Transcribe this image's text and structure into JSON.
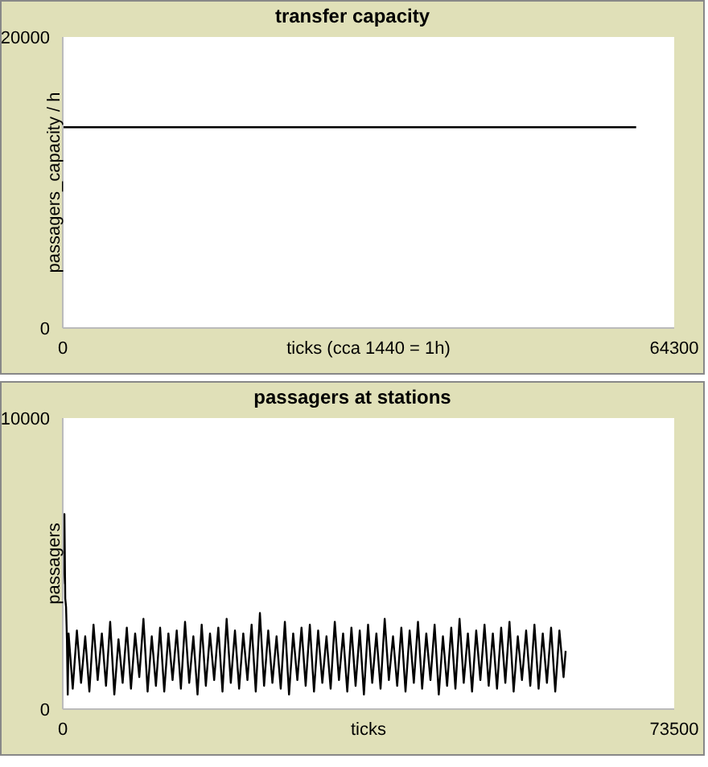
{
  "chart_data": [
    {
      "type": "line",
      "title": "transfer capacity",
      "xlabel": "ticks (cca 1440 = 1h)",
      "ylabel": "passagers_capacity / h",
      "xlim": [
        0,
        64300
      ],
      "xticks": [
        0,
        64300
      ],
      "ylim": [
        0,
        20000
      ],
      "yticks": [
        0,
        20000
      ],
      "grid": false,
      "legend": false,
      "marker": "none",
      "series": [
        {
          "color": "#000000",
          "x": [
            0,
            60300
          ],
          "values": [
            13800,
            13800
          ]
        }
      ]
    },
    {
      "type": "line",
      "title": "passagers at stations",
      "xlabel": "ticks",
      "ylabel": "passagers",
      "xlim": [
        0,
        73500
      ],
      "xticks": [
        0,
        73500
      ],
      "ylim": [
        0,
        10000
      ],
      "yticks": [
        0,
        10000
      ],
      "grid": false,
      "legend": false,
      "marker": "none",
      "series": [
        {
          "color": "#000000",
          "x": [
            0,
            100,
            200,
            300,
            400,
            500,
            600,
            700,
            1200,
            1700,
            2200,
            2700,
            3200,
            3700,
            4200,
            4700,
            5200,
            5700,
            6200,
            6700,
            7200,
            7700,
            8200,
            8700,
            9200,
            9700,
            10200,
            10700,
            11200,
            11700,
            12200,
            12700,
            13200,
            13700,
            14200,
            14700,
            15200,
            15700,
            16200,
            16700,
            17200,
            17700,
            18200,
            18700,
            19200,
            19700,
            20200,
            20700,
            21200,
            21700,
            22200,
            22700,
            23200,
            23700,
            24200,
            24700,
            25200,
            25700,
            26200,
            26700,
            27200,
            27700,
            28200,
            28700,
            29200,
            29700,
            30200,
            30700,
            31200,
            31700,
            32200,
            32700,
            33200,
            33700,
            34200,
            34700,
            35200,
            35700,
            36200,
            36700,
            37200,
            37700,
            38200,
            38700,
            39200,
            39700,
            40200,
            40700,
            41200,
            41700,
            42200,
            42700,
            43200,
            43700,
            44200,
            44700,
            45200,
            45700,
            46200,
            46700,
            47200,
            47700,
            48200,
            48700,
            49200,
            49700,
            50200,
            50700,
            51200,
            51700,
            52200,
            52700,
            53200,
            53700,
            54200,
            54700,
            55200,
            55700,
            56200,
            56700,
            57200,
            57700,
            58200,
            58700,
            59200,
            59700,
            60200,
            60450
          ],
          "values": [
            4300,
            5200,
            6700,
            3800,
            3500,
            2400,
            500,
            2600,
            700,
            2700,
            900,
            2500,
            600,
            2900,
            1000,
            2600,
            800,
            3000,
            500,
            2400,
            900,
            2800,
            700,
            2600,
            1100,
            3100,
            600,
            2500,
            800,
            2800,
            600,
            2600,
            1000,
            2700,
            700,
            3000,
            900,
            2500,
            500,
            2900,
            800,
            2600,
            1000,
            2800,
            600,
            3100,
            900,
            2700,
            700,
            2600,
            1000,
            2900,
            600,
            3300,
            800,
            2700,
            900,
            2500,
            700,
            3000,
            500,
            2600,
            1000,
            2800,
            800,
            2900,
            600,
            2700,
            900,
            2500,
            700,
            3000,
            1000,
            2600,
            600,
            2800,
            800,
            2700,
            500,
            2900,
            900,
            2600,
            700,
            3100,
            1000,
            2500,
            800,
            2800,
            600,
            2700,
            900,
            3000,
            700,
            2600,
            1000,
            2900,
            500,
            2500,
            800,
            2800,
            700,
            3100,
            900,
            2600,
            600,
            2700,
            1000,
            2900,
            800,
            2600,
            700,
            2800,
            900,
            3000,
            600,
            2500,
            1000,
            2700,
            800,
            2900,
            700,
            2600,
            900,
            2800,
            600,
            2700,
            1100,
            2000
          ]
        }
      ]
    }
  ]
}
